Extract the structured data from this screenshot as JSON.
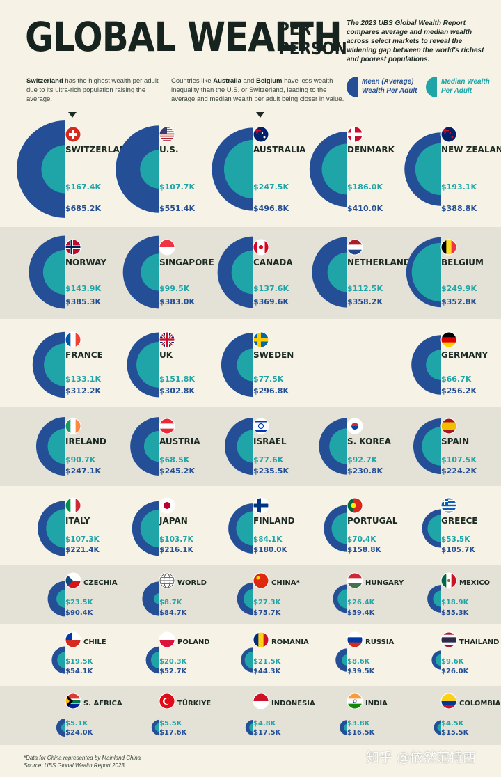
{
  "header": {
    "title": "GLOBAL WEALTH",
    "title_sub_line1": "PER",
    "title_sub_line2": "PERSON",
    "intro": "The 2023 UBS Global Wealth Report compares average and median wealth across select markets to reveal the widening gap between the world's richest and poorest populations."
  },
  "notes": {
    "left_bold": "Switzerland",
    "left_rest": " has the highest wealth per adult due to its ultra-rich population raising the average.",
    "mid_pre": "Countries like ",
    "mid_b1": "Australia",
    "mid_and": " and ",
    "mid_b2": "Belgium",
    "mid_post": " have less wealth inequality than the U.S. or Switzerland, leading to the average and median wealth per adult being closer in value."
  },
  "legend": {
    "mean_line1": "Mean (Average)",
    "mean_line2": "Wealth Per Adult",
    "median_line1": "Median Wealth",
    "median_line2": "Per Adult"
  },
  "colors": {
    "mean": "#244f96",
    "median": "#1fa5a8",
    "band": "#e4e1d6",
    "background": "#f6f3e6"
  },
  "chart_data": {
    "type": "semicircle-comparison",
    "unit": "USD per adult",
    "series": [
      {
        "name": "Mean (Average) Wealth Per Adult",
        "color": "#244f96"
      },
      {
        "name": "Median Wealth Per Adult",
        "color": "#1fa5a8"
      }
    ],
    "countries": [
      {
        "name": "SWITZERLAND",
        "flag": "switzerland-flag",
        "mean_label": "$685.2K",
        "median_label": "$167.4K",
        "mean": 685.2,
        "median": 167.4
      },
      {
        "name": "U.S.",
        "flag": "us-flag",
        "mean_label": "$551.4K",
        "median_label": "$107.7K",
        "mean": 551.4,
        "median": 107.7
      },
      {
        "name": "AUSTRALIA",
        "flag": "australia-flag",
        "mean_label": "$496.8K",
        "median_label": "$247.5K",
        "mean": 496.8,
        "median": 247.5
      },
      {
        "name": "DENMARK",
        "flag": "denmark-flag",
        "mean_label": "$410.0K",
        "median_label": "$186.0K",
        "mean": 410.0,
        "median": 186.0
      },
      {
        "name": "NEW ZEALAND",
        "flag": "new-zealand-flag",
        "mean_label": "$388.8K",
        "median_label": "$193.1K",
        "mean": 388.8,
        "median": 193.1
      },
      {
        "name": "NORWAY",
        "flag": "norway-flag",
        "mean_label": "$385.3K",
        "median_label": "$143.9K",
        "mean": 385.3,
        "median": 143.9
      },
      {
        "name": "SINGAPORE",
        "flag": "singapore-flag",
        "mean_label": "$383.0K",
        "median_label": "$99.5K",
        "mean": 383.0,
        "median": 99.5
      },
      {
        "name": "CANADA",
        "flag": "canada-flag",
        "mean_label": "$369.6K",
        "median_label": "$137.6K",
        "mean": 369.6,
        "median": 137.6
      },
      {
        "name": "NETHERLANDS",
        "flag": "netherlands-flag",
        "mean_label": "$358.2K",
        "median_label": "$112.5K",
        "mean": 358.2,
        "median": 112.5
      },
      {
        "name": "BELGIUM",
        "flag": "belgium-flag",
        "mean_label": "$352.8K",
        "median_label": "$249.9K",
        "mean": 352.8,
        "median": 249.9
      },
      {
        "name": "FRANCE",
        "flag": "france-flag",
        "mean_label": "$312.2K",
        "median_label": "$133.1K",
        "mean": 312.2,
        "median": 133.1
      },
      {
        "name": "UK",
        "flag": "uk-flag",
        "mean_label": "$302.8K",
        "median_label": "$151.8K",
        "mean": 302.8,
        "median": 151.8
      },
      {
        "name": "SWEDEN",
        "flag": "sweden-flag",
        "mean_label": "$296.8K",
        "median_label": "$77.5K",
        "mean": 296.8,
        "median": 77.5
      },
      {
        "name": "GERMANY",
        "flag": "germany-flag",
        "mean_label": "$256.2K",
        "median_label": "$66.7K",
        "mean": 256.2,
        "median": 66.7
      },
      {
        "name": "IRELAND",
        "flag": "ireland-flag",
        "mean_label": "$247.1K",
        "median_label": "$90.7K",
        "mean": 247.1,
        "median": 90.7
      },
      {
        "name": "AUSTRIA",
        "flag": "austria-flag",
        "mean_label": "$245.2K",
        "median_label": "$68.5K",
        "mean": 245.2,
        "median": 68.5
      },
      {
        "name": "ISRAEL",
        "flag": "israel-flag",
        "mean_label": "$235.5K",
        "median_label": "$77.6K",
        "mean": 235.5,
        "median": 77.6
      },
      {
        "name": "S. KOREA",
        "flag": "south-korea-flag",
        "mean_label": "$230.8K",
        "median_label": "$92.7K",
        "mean": 230.8,
        "median": 92.7
      },
      {
        "name": "SPAIN",
        "flag": "spain-flag",
        "mean_label": "$224.2K",
        "median_label": "$107.5K",
        "mean": 224.2,
        "median": 107.5
      },
      {
        "name": "ITALY",
        "flag": "italy-flag",
        "mean_label": "$221.4K",
        "median_label": "$107.3K",
        "mean": 221.4,
        "median": 107.3
      },
      {
        "name": "JAPAN",
        "flag": "japan-flag",
        "mean_label": "$216.1K",
        "median_label": "$103.7K",
        "mean": 216.1,
        "median": 103.7
      },
      {
        "name": "FINLAND",
        "flag": "finland-flag",
        "mean_label": "$180.0K",
        "median_label": "$84.1K",
        "mean": 180.0,
        "median": 84.1
      },
      {
        "name": "PORTUGAL",
        "flag": "portugal-flag",
        "mean_label": "$158.8K",
        "median_label": "$70.4K",
        "mean": 158.8,
        "median": 70.4
      },
      {
        "name": "GREECE",
        "flag": "greece-flag",
        "mean_label": "$105.7K",
        "median_label": "$53.5K",
        "mean": 105.7,
        "median": 53.5
      },
      {
        "name": "CZECHIA",
        "flag": "czechia-flag",
        "mean_label": "$90.4K",
        "median_label": "$23.5K",
        "mean": 90.4,
        "median": 23.5
      },
      {
        "name": "WORLD",
        "flag": "globe-icon",
        "mean_label": "$84.7K",
        "median_label": "$8.7K",
        "mean": 84.7,
        "median": 8.7
      },
      {
        "name": "CHINA*",
        "flag": "china-flag",
        "mean_label": "$75.7K",
        "median_label": "$27.3K",
        "mean": 75.7,
        "median": 27.3
      },
      {
        "name": "HUNGARY",
        "flag": "hungary-flag",
        "mean_label": "$59.4K",
        "median_label": "$26.4K",
        "mean": 59.4,
        "median": 26.4
      },
      {
        "name": "MEXICO",
        "flag": "mexico-flag",
        "mean_label": "$55.3K",
        "median_label": "$18.9K",
        "mean": 55.3,
        "median": 18.9
      },
      {
        "name": "CHILE",
        "flag": "chile-flag",
        "mean_label": "$54.1K",
        "median_label": "$19.5K",
        "mean": 54.1,
        "median": 19.5
      },
      {
        "name": "POLAND",
        "flag": "poland-flag",
        "mean_label": "$52.7K",
        "median_label": "$20.3K",
        "mean": 52.7,
        "median": 20.3
      },
      {
        "name": "ROMANIA",
        "flag": "romania-flag",
        "mean_label": "$44.3K",
        "median_label": "$21.5K",
        "mean": 44.3,
        "median": 21.5
      },
      {
        "name": "RUSSIA",
        "flag": "russia-flag",
        "mean_label": "$39.5K",
        "median_label": "$8.6K",
        "mean": 39.5,
        "median": 8.6
      },
      {
        "name": "THAILAND",
        "flag": "thailand-flag",
        "mean_label": "$26.0K",
        "median_label": "$9.6K",
        "mean": 26.0,
        "median": 9.6
      },
      {
        "name": "S. AFRICA",
        "flag": "south-africa-flag",
        "mean_label": "$24.0K",
        "median_label": "$5.1K",
        "mean": 24.0,
        "median": 5.1
      },
      {
        "name": "TÜRKIYE",
        "flag": "turkiye-flag",
        "mean_label": "$17.6K",
        "median_label": "$5.5K",
        "mean": 17.6,
        "median": 5.5
      },
      {
        "name": "INDONESIA",
        "flag": "indonesia-flag",
        "mean_label": "$17.5K",
        "median_label": "$4.8K",
        "mean": 17.5,
        "median": 4.8
      },
      {
        "name": "INDIA",
        "flag": "india-flag",
        "mean_label": "$16.5K",
        "median_label": "$3.8K",
        "mean": 16.5,
        "median": 3.8
      },
      {
        "name": "COLOMBIA",
        "flag": "colombia-flag",
        "mean_label": "$15.5K",
        "median_label": "$4.5K",
        "mean": 15.5,
        "median": 4.5
      }
    ]
  },
  "footer": {
    "note": "*Data for China represented by Mainland China",
    "source": "Source: UBS Global Wealth Report 2023",
    "watermark": "知乎 @依然范特西"
  }
}
